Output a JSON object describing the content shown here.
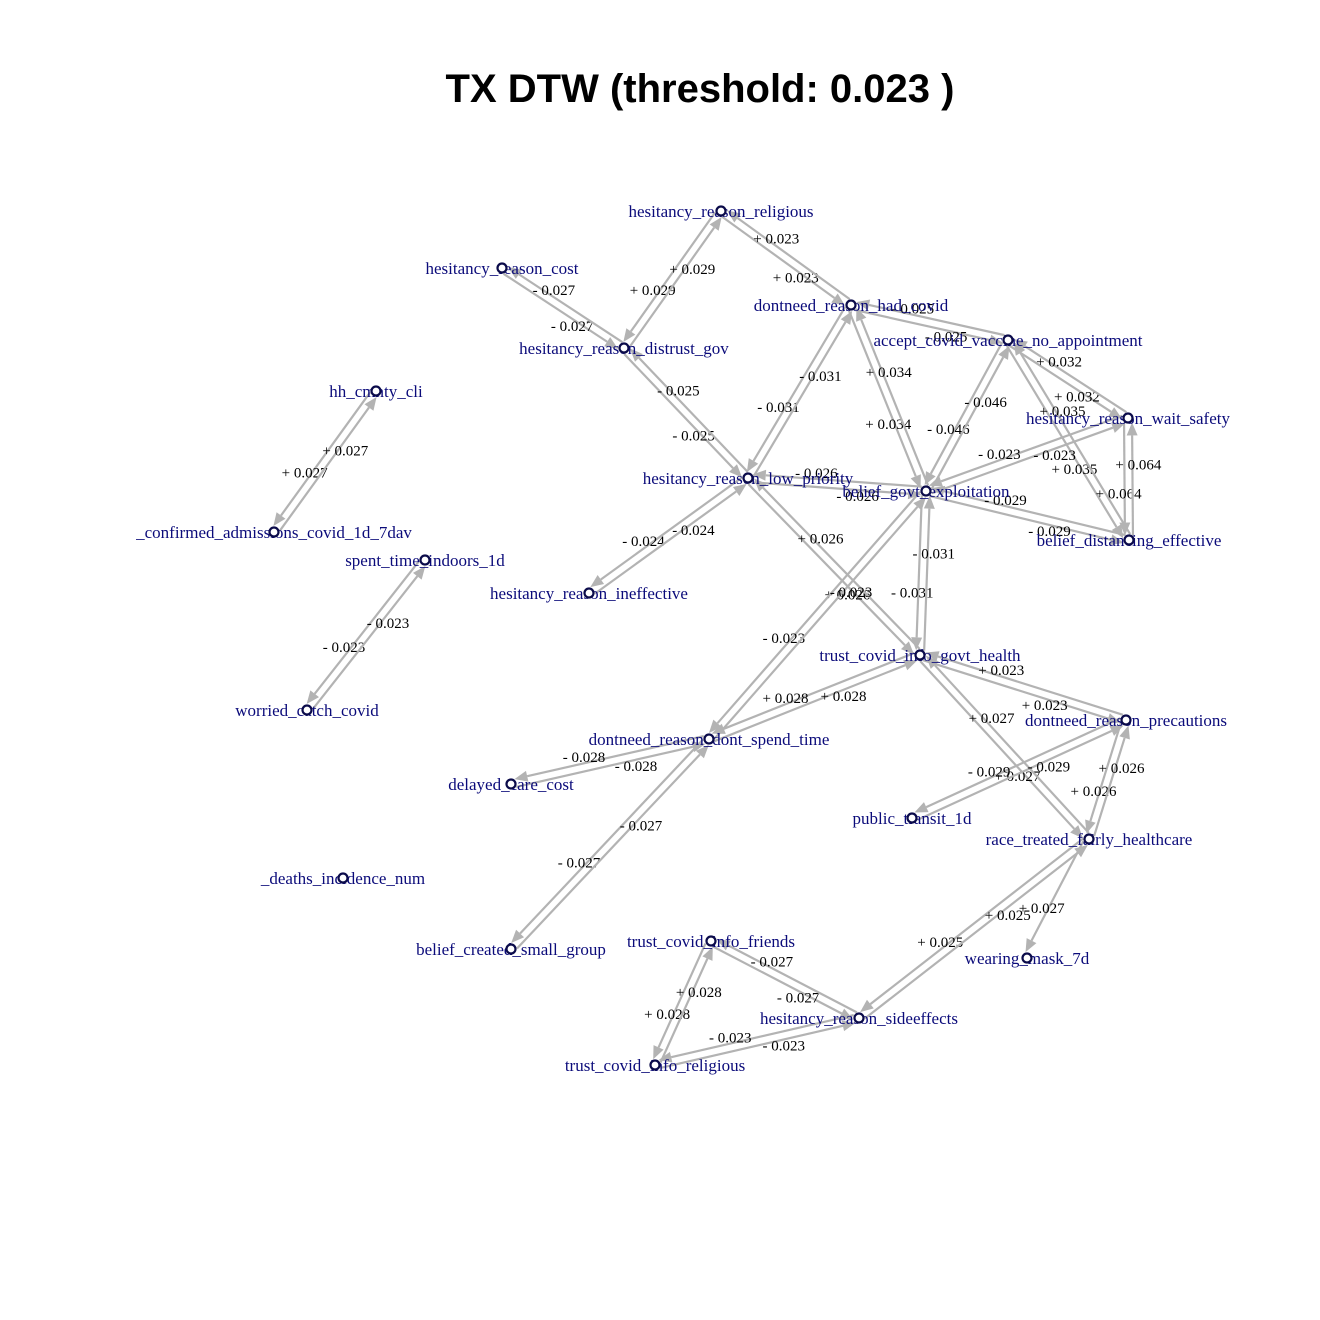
{
  "title": "TX DTW (threshold: 0.023 )",
  "colors": {
    "edge": "#b3b3b3",
    "node_label": "#0b0b7a",
    "node_stroke": "#0b0b4a",
    "edge_label": "#000000"
  },
  "nodes": [
    {
      "id": "hesitancy_reason_religious",
      "label": "hesitancy_reason_religious"
    },
    {
      "id": "hesitancy_reason_cost",
      "label": "hesitancy_reason_cost"
    },
    {
      "id": "dontneed_reason_had_covid",
      "label": "dontneed_reason_had_covid"
    },
    {
      "id": "hesitancy_reason_distrust_gov",
      "label": "hesitancy_reason_distrust_gov"
    },
    {
      "id": "accept_covid_vaccine_no_appointment",
      "label": "accept_covid_vaccine_no_appointment"
    },
    {
      "id": "hh_cmnty_cli",
      "label": "hh_cmnty_cli"
    },
    {
      "id": "hesitancy_reason_wait_safety",
      "label": "hesitancy_reason_wait_safety"
    },
    {
      "id": "hesitancy_reason_low_priority",
      "label": "hesitancy_reason_low_priority"
    },
    {
      "id": "belief_govt_exploitation",
      "label": "belief_govt_exploitation"
    },
    {
      "id": "confirmed_admissions",
      "label": "_confirmed_admissions_covid_1d_7dav"
    },
    {
      "id": "belief_distancing_effective",
      "label": "belief_distancing_effective"
    },
    {
      "id": "spent_time_indoors_1d",
      "label": "spent_time_indoors_1d"
    },
    {
      "id": "hesitancy_reason_ineffective",
      "label": "hesitancy_reason_ineffective"
    },
    {
      "id": "trust_covid_info_govt_health",
      "label": "trust_covid_info_govt_health"
    },
    {
      "id": "worried_catch_covid",
      "label": "worried_catch_covid"
    },
    {
      "id": "dontneed_reason_precautions",
      "label": "dontneed_reason_precautions"
    },
    {
      "id": "dontneed_reason_dont_spend_time",
      "label": "dontneed_reason_dont_spend_time"
    },
    {
      "id": "delayed_care_cost",
      "label": "delayed_care_cost"
    },
    {
      "id": "public_transit_1d",
      "label": "public_transit_1d"
    },
    {
      "id": "race_treated_fairly_healthcare",
      "label": "race_treated_fairly_healthcare"
    },
    {
      "id": "deaths_incidence_num",
      "label": "_deaths_incidence_num"
    },
    {
      "id": "belief_created_small_group",
      "label": "belief_created_small_group"
    },
    {
      "id": "trust_covid_info_friends",
      "label": "trust_covid_info_friends"
    },
    {
      "id": "wearing_mask_7d",
      "label": "wearing_mask_7d"
    },
    {
      "id": "hesitancy_reason_sideeffects",
      "label": "hesitancy_reason_sideeffects"
    },
    {
      "id": "trust_covid_info_religious",
      "label": "trust_covid_info_religious"
    }
  ],
  "edges": [
    {
      "source": "hesitancy_reason_cost",
      "target": "hesitancy_reason_distrust_gov",
      "label": "- 0.027"
    },
    {
      "source": "hesitancy_reason_distrust_gov",
      "target": "hesitancy_reason_cost",
      "label": "- 0.027"
    },
    {
      "source": "hesitancy_reason_religious",
      "target": "hesitancy_reason_distrust_gov",
      "label": "+ 0.029"
    },
    {
      "source": "hesitancy_reason_distrust_gov",
      "target": "hesitancy_reason_religious",
      "label": "+ 0.029"
    },
    {
      "source": "hesitancy_reason_religious",
      "target": "dontneed_reason_had_covid",
      "label": "+ 0.023"
    },
    {
      "source": "dontneed_reason_had_covid",
      "target": "hesitancy_reason_religious",
      "label": "+ 0.023"
    },
    {
      "source": "dontneed_reason_had_covid",
      "target": "accept_covid_vaccine_no_appointment",
      "label": "- 0.025"
    },
    {
      "source": "accept_covid_vaccine_no_appointment",
      "target": "dontneed_reason_had_covid",
      "label": "- 0.025"
    },
    {
      "source": "hesitancy_reason_distrust_gov",
      "target": "hesitancy_reason_low_priority",
      "label": "- 0.025"
    },
    {
      "source": "hesitancy_reason_low_priority",
      "target": "hesitancy_reason_distrust_gov",
      "label": "- 0.025"
    },
    {
      "source": "dontneed_reason_had_covid",
      "target": "hesitancy_reason_low_priority",
      "label": "- 0.031"
    },
    {
      "source": "hesitancy_reason_low_priority",
      "target": "dontneed_reason_had_covid",
      "label": "- 0.031"
    },
    {
      "source": "dontneed_reason_had_covid",
      "target": "belief_govt_exploitation",
      "label": "+ 0.034"
    },
    {
      "source": "belief_govt_exploitation",
      "target": "dontneed_reason_had_covid",
      "label": "+ 0.034"
    },
    {
      "source": "accept_covid_vaccine_no_appointment",
      "target": "belief_govt_exploitation",
      "label": "- 0.046"
    },
    {
      "source": "belief_govt_exploitation",
      "target": "accept_covid_vaccine_no_appointment",
      "label": "- 0.046"
    },
    {
      "source": "accept_covid_vaccine_no_appointment",
      "target": "hesitancy_reason_wait_safety",
      "label": "+ 0.032"
    },
    {
      "source": "hesitancy_reason_wait_safety",
      "target": "accept_covid_vaccine_no_appointment",
      "label": "+ 0.032"
    },
    {
      "source": "accept_covid_vaccine_no_appointment",
      "target": "belief_distancing_effective",
      "label": "+ 0.035"
    },
    {
      "source": "belief_distancing_effective",
      "target": "accept_covid_vaccine_no_appointment",
      "label": "+ 0.035"
    },
    {
      "source": "hesitancy_reason_wait_safety",
      "target": "belief_govt_exploitation",
      "label": "- 0.023"
    },
    {
      "source": "belief_govt_exploitation",
      "target": "hesitancy_reason_wait_safety",
      "label": "- 0.023"
    },
    {
      "source": "hesitancy_reason_wait_safety",
      "target": "belief_distancing_effective",
      "label": "+ 0.064"
    },
    {
      "source": "belief_distancing_effective",
      "target": "hesitancy_reason_wait_safety",
      "label": "+ 0.064"
    },
    {
      "source": "belief_govt_exploitation",
      "target": "belief_distancing_effective",
      "label": "- 0.029"
    },
    {
      "source": "belief_distancing_effective",
      "target": "belief_govt_exploitation",
      "label": "- 0.029"
    },
    {
      "source": "hesitancy_reason_low_priority",
      "target": "belief_govt_exploitation",
      "label": "- 0.026"
    },
    {
      "source": "belief_govt_exploitation",
      "target": "hesitancy_reason_low_priority",
      "label": "- 0.026"
    },
    {
      "source": "hesitancy_reason_low_priority",
      "target": "hesitancy_reason_ineffective",
      "label": "- 0.024"
    },
    {
      "source": "hesitancy_reason_ineffective",
      "target": "hesitancy_reason_low_priority",
      "label": "- 0.024"
    },
    {
      "source": "hesitancy_reason_low_priority",
      "target": "trust_covid_info_govt_health",
      "label": "+ 0.026"
    },
    {
      "source": "trust_covid_info_govt_health",
      "target": "hesitancy_reason_low_priority",
      "label": "+ 0.026"
    },
    {
      "source": "belief_govt_exploitation",
      "target": "trust_covid_info_govt_health",
      "label": "- 0.031"
    },
    {
      "source": "trust_covid_info_govt_health",
      "target": "belief_govt_exploitation",
      "label": "- 0.031"
    },
    {
      "source": "belief_govt_exploitation",
      "target": "dontneed_reason_dont_spend_time",
      "label": "- 0.023"
    },
    {
      "source": "dontneed_reason_dont_spend_time",
      "target": "belief_govt_exploitation",
      "label": "- 0.023"
    },
    {
      "source": "hh_cmnty_cli",
      "target": "confirmed_admissions",
      "label": "+ 0.027"
    },
    {
      "source": "confirmed_admissions",
      "target": "hh_cmnty_cli",
      "label": "+ 0.027"
    },
    {
      "source": "spent_time_indoors_1d",
      "target": "worried_catch_covid",
      "label": "- 0.023"
    },
    {
      "source": "worried_catch_covid",
      "target": "spent_time_indoors_1d",
      "label": "- 0.023"
    },
    {
      "source": "trust_covid_info_govt_health",
      "target": "dontneed_reason_dont_spend_time",
      "label": "+ 0.028"
    },
    {
      "source": "dontneed_reason_dont_spend_time",
      "target": "trust_covid_info_govt_health",
      "label": "+ 0.028"
    },
    {
      "source": "trust_covid_info_govt_health",
      "target": "dontneed_reason_precautions",
      "label": "+ 0.023"
    },
    {
      "source": "dontneed_reason_precautions",
      "target": "trust_covid_info_govt_health",
      "label": "+ 0.023"
    },
    {
      "source": "trust_covid_info_govt_health",
      "target": "race_treated_fairly_healthcare",
      "label": "+ 0.027"
    },
    {
      "source": "race_treated_fairly_healthcare",
      "target": "trust_covid_info_govt_health",
      "label": "+ 0.027"
    },
    {
      "source": "dontneed_reason_dont_spend_time",
      "target": "delayed_care_cost",
      "label": "- 0.028"
    },
    {
      "source": "delayed_care_cost",
      "target": "dontneed_reason_dont_spend_time",
      "label": "- 0.028"
    },
    {
      "source": "dontneed_reason_dont_spend_time",
      "target": "belief_created_small_group",
      "label": "- 0.027"
    },
    {
      "source": "belief_created_small_group",
      "target": "dontneed_reason_dont_spend_time",
      "label": "- 0.027"
    },
    {
      "source": "dontneed_reason_precautions",
      "target": "public_transit_1d",
      "label": "- 0.029"
    },
    {
      "source": "public_transit_1d",
      "target": "dontneed_reason_precautions",
      "label": "- 0.029"
    },
    {
      "source": "dontneed_reason_precautions",
      "target": "race_treated_fairly_healthcare",
      "label": "+ 0.026"
    },
    {
      "source": "race_treated_fairly_healthcare",
      "target": "dontneed_reason_precautions",
      "label": "+ 0.026"
    },
    {
      "source": "race_treated_fairly_healthcare",
      "target": "wearing_mask_7d",
      "label": "+ 0.027"
    },
    {
      "source": "race_treated_fairly_healthcare",
      "target": "hesitancy_reason_sideeffects",
      "label": "+ 0.025"
    },
    {
      "source": "hesitancy_reason_sideeffects",
      "target": "race_treated_fairly_healthcare",
      "label": "+ 0.025"
    },
    {
      "source": "trust_covid_info_friends",
      "target": "hesitancy_reason_sideeffects",
      "label": "- 0.027"
    },
    {
      "source": "hesitancy_reason_sideeffects",
      "target": "trust_covid_info_friends",
      "label": "- 0.027"
    },
    {
      "source": "trust_covid_info_friends",
      "target": "trust_covid_info_religious",
      "label": "+ 0.028"
    },
    {
      "source": "trust_covid_info_religious",
      "target": "trust_covid_info_friends",
      "label": "+ 0.028"
    },
    {
      "source": "hesitancy_reason_sideeffects",
      "target": "trust_covid_info_religious",
      "label": "- 0.023"
    },
    {
      "source": "trust_covid_info_religious",
      "target": "hesitancy_reason_sideeffects",
      "label": "- 0.023"
    }
  ]
}
